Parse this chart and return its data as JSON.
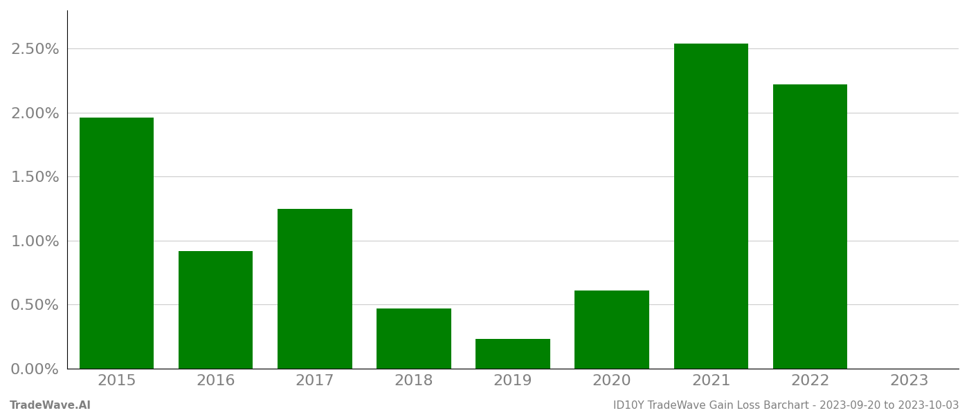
{
  "categories": [
    2015,
    2016,
    2017,
    2018,
    2019,
    2020,
    2021,
    2022,
    2023
  ],
  "values": [
    0.0196,
    0.0092,
    0.0125,
    0.0047,
    0.0023,
    0.0061,
    0.0254,
    0.0222,
    0.0
  ],
  "bar_color": "#008000",
  "background_color": "#ffffff",
  "ylabel_ticks": [
    0.0,
    0.005,
    0.01,
    0.015,
    0.02,
    0.025
  ],
  "ytick_labels": [
    "0.00%",
    "0.50%",
    "1.00%",
    "1.50%",
    "2.00%",
    "2.50%"
  ],
  "ylim": [
    0,
    0.028
  ],
  "grid_color": "#cccccc",
  "footer_left": "TradeWave.AI",
  "footer_right": "ID10Y TradeWave Gain Loss Barchart - 2023-09-20 to 2023-10-03",
  "footer_color": "#808080",
  "footer_fontsize": 11,
  "tick_label_color": "#808080",
  "tick_fontsize": 16,
  "bar_width": 0.75,
  "xlim": [
    2014.5,
    2023.5
  ],
  "left_spine_color": "#000000",
  "bottom_spine_color": "#000000"
}
